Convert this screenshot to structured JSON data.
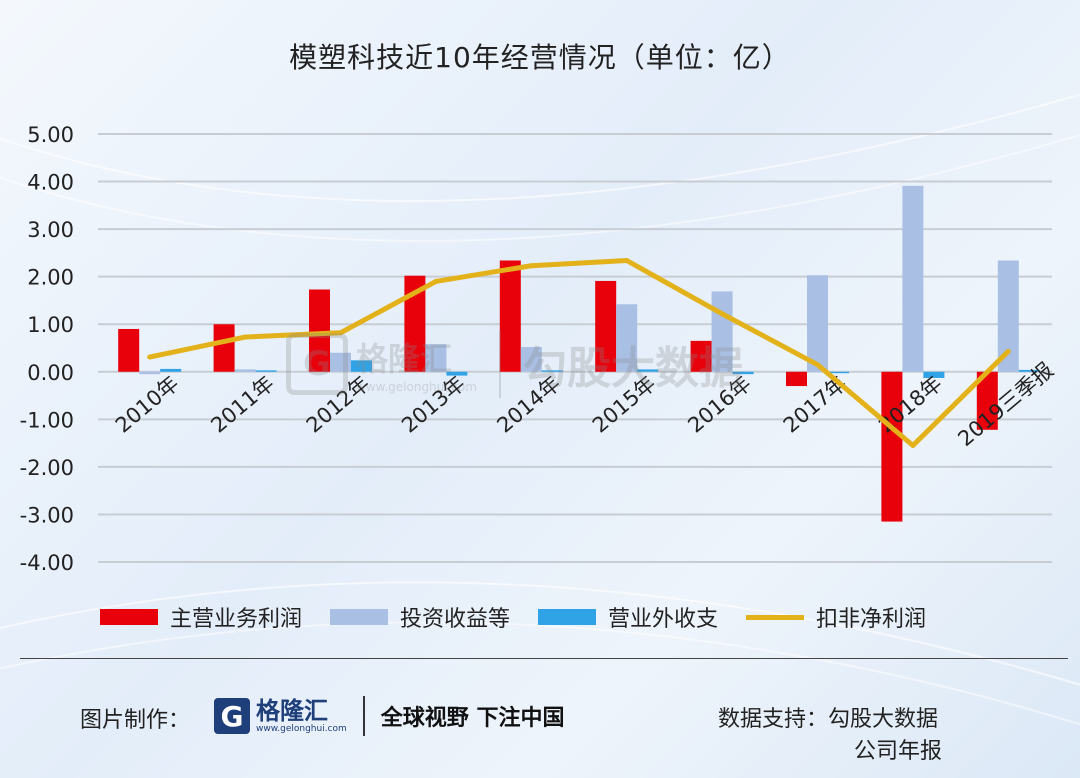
{
  "chart_data": {
    "type": "bar",
    "title": "模塑科技近10年经营情况（单位：亿）",
    "categories": [
      "2010年",
      "2011年",
      "2012年",
      "2013年",
      "2014年",
      "2015年",
      "2016年",
      "2017年",
      "2018年",
      "2019三季报"
    ],
    "series": [
      {
        "name": "主营业务利润",
        "type": "bar",
        "color": "#e8000b",
        "values": [
          0.9,
          1.0,
          1.73,
          2.02,
          2.34,
          1.91,
          0.65,
          -0.3,
          -3.15,
          -1.22
        ]
      },
      {
        "name": "投资收益等",
        "type": "bar",
        "color": "#a9c0e4",
        "values": [
          -0.05,
          0.05,
          0.4,
          0.58,
          0.52,
          1.42,
          1.69,
          2.03,
          3.91,
          2.34
        ]
      },
      {
        "name": "营业外收支",
        "type": "bar",
        "color": "#2fa3e6",
        "values": [
          0.06,
          0.03,
          0.24,
          -0.08,
          0.03,
          0.05,
          -0.05,
          -0.03,
          -0.13,
          0.04
        ]
      },
      {
        "name": "扣非净利润",
        "type": "line",
        "color": "#e3b21a",
        "values": [
          0.31,
          0.73,
          0.82,
          1.9,
          2.23,
          2.34,
          1.22,
          0.15,
          -1.55,
          0.43
        ]
      }
    ],
    "ylim": [
      -4,
      5
    ],
    "yticks": [
      "5.00",
      "4.00",
      "3.00",
      "2.00",
      "1.00",
      "0.00",
      "-1.00",
      "-2.00",
      "-3.00",
      "-4.00"
    ],
    "ytick_values": [
      5,
      4,
      3,
      2,
      1,
      0,
      -1,
      -2,
      -3,
      -4
    ],
    "grid": true,
    "legend_position": "bottom",
    "xlabel": "",
    "ylabel": ""
  },
  "footer": {
    "made_by_label": "图片制作：",
    "logo_name": "格隆汇",
    "logo_url": "www.gelonghui.com",
    "logo_letter": "G",
    "slogan": "全球视野 下注中国",
    "source_label": "数据支持：",
    "source_line1": "勾股大数据",
    "source_line2": "公司年报"
  },
  "watermark": {
    "logo_name": "格隆汇",
    "logo_url": "www.gelonghui.com",
    "logo_letter": "G",
    "text": "勾股大数据"
  }
}
